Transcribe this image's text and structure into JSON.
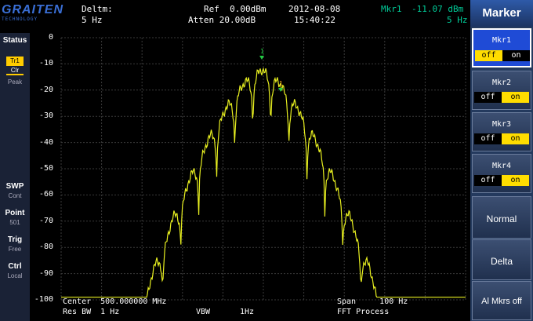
{
  "logo": {
    "line1": "GRAITEN",
    "line2": "TECHNOLOGY"
  },
  "header": {
    "mode_label": "Deltm:",
    "mode_value": "5 Hz",
    "ref": "Ref  0.00dBm",
    "atten": "Atten 20.00dB",
    "date": "2012-08-08",
    "time": "15:40:22",
    "marker_name": "Mkr1",
    "marker_level": "-11.07 dBm",
    "marker_freq": "5 Hz"
  },
  "sidebar": {
    "status": "Status",
    "trace_active": "Tr1",
    "trace_clear": "Clr",
    "trace_peak": "Peak",
    "swp_label": "SWP",
    "swp_value": "Cont",
    "point_label": "Point",
    "point_value": "501",
    "trig_label": "Trig",
    "trig_value": "Free",
    "ctrl_label": "Ctrl",
    "ctrl_value": "Local"
  },
  "plot": {
    "y_ticks": [
      "0",
      "-10",
      "-20",
      "-30",
      "-40",
      "-50",
      "-60",
      "-70",
      "-80",
      "-90",
      "-100"
    ],
    "trace_color": "#e8f020",
    "grid_color": "#3a3a3a",
    "marker_color": "#22cc44",
    "markers": [
      "1",
      "1"
    ]
  },
  "footer": {
    "center": "Center  500.000000 MHz",
    "res_bw": "Res BW  1 Hz",
    "vbw_label": "VBW",
    "vbw_value": "1Hz",
    "span": "Span     100 Hz",
    "fft": "FFT Process"
  },
  "softkeys": {
    "title": "Marker",
    "keys": [
      {
        "label": "Mkr1",
        "off": "off",
        "on": "on",
        "state": "off"
      },
      {
        "label": "Mkr2",
        "off": "off",
        "on": "on",
        "state": "on"
      },
      {
        "label": "Mkr3",
        "off": "off",
        "on": "on",
        "state": "on"
      },
      {
        "label": "Mkr4",
        "off": "off",
        "on": "on",
        "state": "on"
      }
    ],
    "normal": "Normal",
    "delta": "Delta",
    "all_off": "Al Mkrs off"
  }
}
